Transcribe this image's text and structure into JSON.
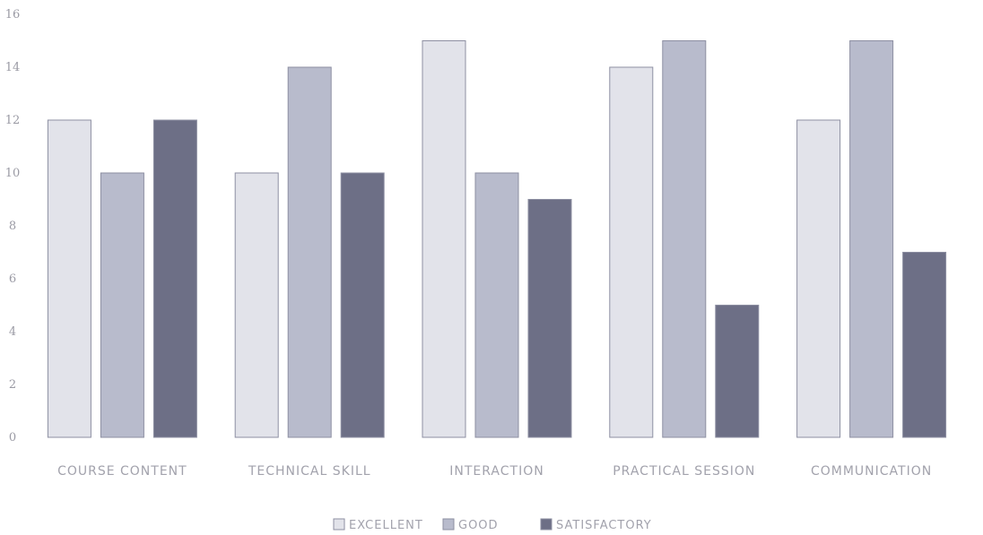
{
  "chart_data": {
    "type": "bar",
    "title": "",
    "xlabel": "",
    "ylabel": "",
    "categories": [
      "COURSE CONTENT",
      "TECHNICAL SKILL",
      "INTERACTION",
      "PRACTICAL SESSION",
      "COMMUNICATION"
    ],
    "series": [
      {
        "name": "EXCELLENT",
        "values": [
          12,
          10,
          15,
          14,
          12
        ],
        "color": "#e2e3ea"
      },
      {
        "name": "GOOD",
        "values": [
          10,
          14,
          10,
          15,
          15
        ],
        "color": "#b8bbcc"
      },
      {
        "name": "SATISFACTORY",
        "values": [
          12,
          10,
          9,
          5,
          7
        ],
        "color": "#6d6f86"
      }
    ],
    "ylim": [
      0,
      16
    ],
    "yticks": [
      0,
      2,
      4,
      6,
      8,
      10,
      12,
      14,
      16
    ],
    "grid": false,
    "legend_position": "bottom"
  }
}
